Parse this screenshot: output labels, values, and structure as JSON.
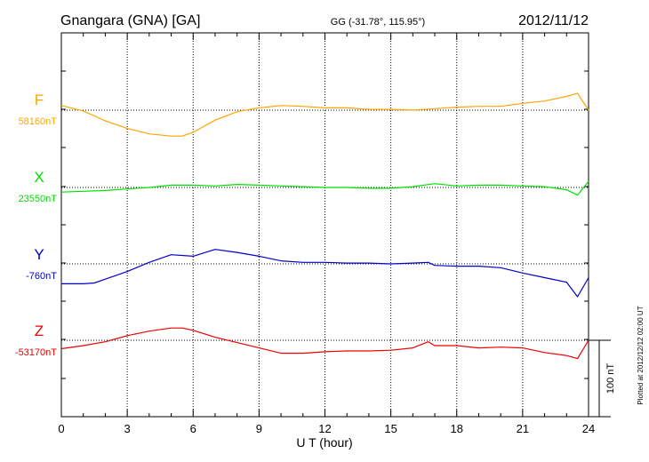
{
  "header": {
    "station": "Gnangara (GNA)  [GA]",
    "coords": "GG (-31.78°, 115.95°)",
    "date": "2012/11/12"
  },
  "footer": {
    "plotted": "Plotted at 2012/12/12 02:00 UT"
  },
  "chart_data": {
    "type": "line",
    "title": "Gnangara (GNA)  [GA]",
    "xlabel": "U T (hour)",
    "xlim": [
      0,
      24
    ],
    "xticks": [
      "0",
      "3",
      "6",
      "9",
      "12",
      "15",
      "18",
      "21",
      "24"
    ],
    "scale_bar": {
      "label": "100 nT",
      "value": 100
    },
    "grid": true,
    "series": [
      {
        "name": "F",
        "baseline_label": "58160nT",
        "baseline": 58160,
        "color": "#ffa500",
        "x": [
          0,
          1,
          2,
          3,
          4,
          5,
          5.5,
          6,
          7,
          8,
          9,
          10,
          11,
          12,
          13,
          14,
          15,
          16,
          17,
          18,
          19,
          20,
          21,
          22,
          23,
          23.5,
          24
        ],
        "y": [
          58166,
          58159,
          58146,
          58136,
          58129,
          58126,
          58126,
          58131,
          58147,
          58158,
          58163,
          58166,
          58165,
          58163,
          58163,
          58161,
          58161,
          58160,
          58162,
          58164,
          58165,
          58165,
          58169,
          58172,
          58178,
          58182,
          58160
        ]
      },
      {
        "name": "X",
        "baseline_label": "23550nT",
        "baseline": 23550,
        "color": "#00e000",
        "x": [
          0,
          1,
          2,
          3,
          4,
          5,
          6,
          7,
          8,
          9,
          10,
          11,
          12,
          13,
          14,
          15,
          16,
          17,
          18,
          19,
          20,
          21,
          22,
          23,
          23.5,
          24
        ],
        "y": [
          23544,
          23545,
          23546,
          23548,
          23550,
          23553,
          23553,
          23552,
          23554,
          23553,
          23552,
          23551,
          23550,
          23550,
          23549,
          23549,
          23551,
          23555,
          23552,
          23553,
          23553,
          23552,
          23551,
          23547,
          23540,
          23558
        ]
      },
      {
        "name": "Y",
        "baseline_label": "-760nT",
        "baseline": -760,
        "color": "#0000cc",
        "x": [
          0,
          1,
          1.5,
          2,
          3,
          4,
          5,
          6,
          7,
          8,
          9,
          10,
          11,
          12,
          13,
          14,
          15,
          16,
          16.7,
          17,
          18,
          19,
          20,
          21,
          22,
          23,
          23.5,
          24
        ],
        "y": [
          -786,
          -786,
          -785,
          -780,
          -770,
          -758,
          -748,
          -750,
          -741,
          -745,
          -750,
          -756,
          -758,
          -758,
          -759,
          -759,
          -760,
          -759,
          -758,
          -762,
          -763,
          -763,
          -765,
          -772,
          -778,
          -784,
          -803,
          -778
        ]
      },
      {
        "name": "Z",
        "baseline_label": "-53170nT",
        "baseline": -53170,
        "color": "#ee0000",
        "x": [
          0,
          1,
          2,
          3,
          4,
          5,
          5.5,
          6,
          7,
          8,
          9,
          10,
          11,
          12,
          13,
          14,
          15,
          16,
          16.7,
          17,
          18,
          19,
          20,
          21,
          22,
          23,
          23.5,
          24
        ],
        "y": [
          -53181,
          -53177,
          -53172,
          -53164,
          -53158,
          -53154,
          -53154,
          -53157,
          -53166,
          -53173,
          -53180,
          -53187,
          -53187,
          -53185,
          -53184,
          -53184,
          -53183,
          -53180,
          -53172,
          -53177,
          -53177,
          -53180,
          -53179,
          -53180,
          -53186,
          -53190,
          -53194,
          -53170
        ]
      }
    ]
  }
}
